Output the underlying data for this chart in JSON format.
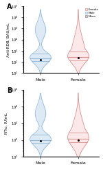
{
  "panel_A": {
    "title": "A",
    "ylabel": "Anti-RDB, BAU/mL",
    "ylim_log": [
      1.0,
      7.0
    ],
    "yticks_log": [
      1,
      2,
      3,
      4,
      5,
      6,
      7
    ],
    "male": {
      "color": "#ddeaf5",
      "edge_color": "#90b8d8",
      "q1_log": 2.05,
      "median_log": 2.3,
      "q3_log": 2.75,
      "mean_log": 2.2,
      "vmin_log": 1.0,
      "vmax_log": 6.7,
      "shape": "double_bulge"
    },
    "female": {
      "color": "#fce8e8",
      "edge_color": "#d89090",
      "q1_log": 2.15,
      "median_log": 2.45,
      "q3_log": 2.9,
      "mean_log": 2.35,
      "vmin_log": 1.0,
      "vmax_log": 6.7,
      "shape": "triangle_top"
    }
  },
  "panel_B": {
    "title": "B",
    "ylabel": "NT$_{50}$, IU/mL",
    "ylim_log": [
      1.0,
      5.0
    ],
    "yticks_log": [
      1,
      2,
      3,
      4,
      5
    ],
    "male": {
      "color": "#ddeaf5",
      "edge_color": "#90b8d8",
      "q1_log": 1.8,
      "median_log": 2.0,
      "q3_log": 2.3,
      "mean_log": 1.95,
      "vmin_log": 1.0,
      "vmax_log": 4.8,
      "shape": "double_bulge"
    },
    "female": {
      "color": "#fce8e8",
      "edge_color": "#d89090",
      "q1_log": 1.85,
      "median_log": 2.05,
      "q3_log": 2.45,
      "mean_log": 2.0,
      "vmin_log": 1.0,
      "vmax_log": 4.8,
      "shape": "triangle_top"
    }
  },
  "legend_labels": [
    "Female",
    "Male",
    "Mean"
  ],
  "legend_colors": [
    "#fce8e8",
    "#ddeaf5",
    "#d0d0d0"
  ],
  "legend_edge_colors": [
    "#d89090",
    "#90b8d8",
    "#909090"
  ],
  "x_labels": [
    "Male",
    "Female"
  ],
  "background_color": "#ffffff",
  "violin_width": 0.28
}
